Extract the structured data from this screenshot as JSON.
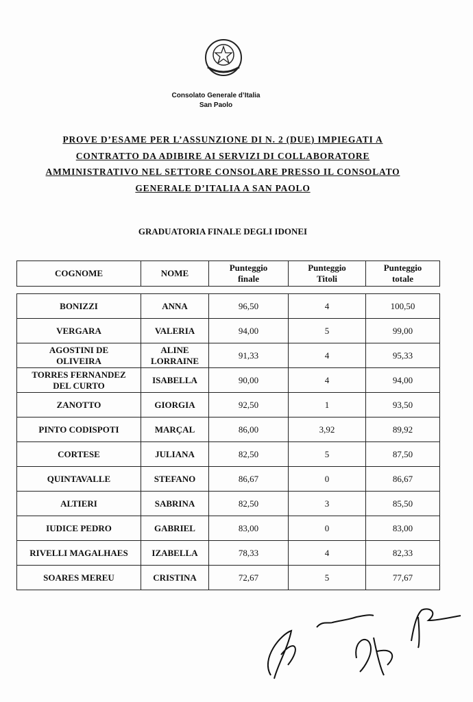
{
  "header": {
    "office": "Consolato Generale d’Italia",
    "city": "San Paolo"
  },
  "title": {
    "lines": [
      "PROVE D’ESAME PER L’ASSUNZIONE DI N. 2 (DUE) IMPIEGATI A",
      "CONTRATTO DA ADIBIRE AI SERVIZI DI COLLABORATORE",
      "AMMINISTRATIVO NEL SETTORE CONSOLARE PRESSO IL CONSOLATO",
      "GENERALE D’ITALIA A SAN PAOLO"
    ]
  },
  "subtitle": "GRADUATORIA FINALE DEGLI IDONEI",
  "table": {
    "columns": [
      "COGNOME",
      "NOME",
      "Punteggio finale",
      "Punteggio Titoli",
      "Punteggio totale"
    ],
    "rows": [
      [
        "BONIZZI",
        "ANNA",
        "96,50",
        "4",
        "100,50"
      ],
      [
        "VERGARA",
        "VALERIA",
        "94,00",
        "5",
        "99,00"
      ],
      [
        "AGOSTINI DE OLIVEIRA",
        "ALINE LORRAINE",
        "91,33",
        "4",
        "95,33"
      ],
      [
        "TORRES FERNANDEZ DEL CURTO",
        "ISABELLA",
        "90,00",
        "4",
        "94,00"
      ],
      [
        "ZANOTTO",
        "GIORGIA",
        "92,50",
        "1",
        "93,50"
      ],
      [
        "PINTO CODISPOTI",
        "MARÇAL",
        "86,00",
        "3,92",
        "89,92"
      ],
      [
        "CORTESE",
        "JULIANA",
        "82,50",
        "5",
        "87,50"
      ],
      [
        "QUINTAVALLE",
        "STEFANO",
        "86,67",
        "0",
        "86,67"
      ],
      [
        "ALTIERI",
        "SABRINA",
        "82,50",
        "3",
        "85,50"
      ],
      [
        "IUDICE PEDRO",
        "GABRIEL",
        "83,00",
        "0",
        "83,00"
      ],
      [
        "RIVELLI MAGALHAES",
        "IZABELLA",
        "78,33",
        "4",
        "82,33"
      ],
      [
        "SOARES MEREU",
        "CRISTINA",
        "72,67",
        "5",
        "77,67"
      ]
    ]
  }
}
